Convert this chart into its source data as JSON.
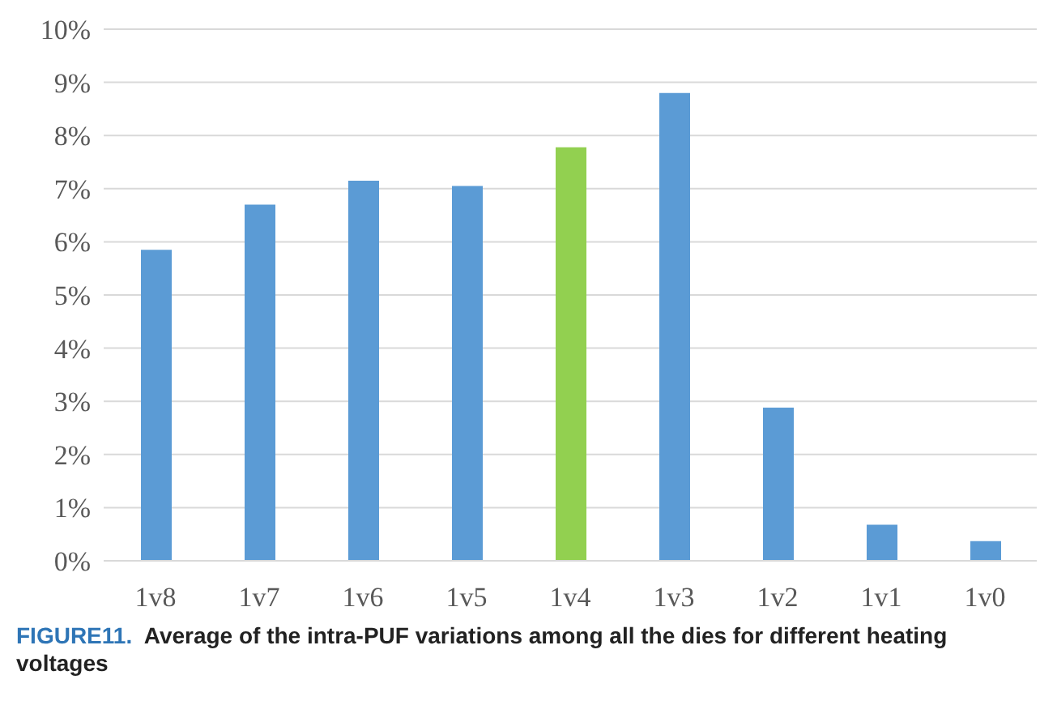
{
  "chart_data": {
    "type": "bar",
    "title": "FIGURE11.  Average of the intra-PUF variations among all the dies for different heating voltages",
    "categories": [
      "1v8",
      "1v7",
      "1v6",
      "1v5",
      "1v4",
      "1v3",
      "1v2",
      "1v1",
      "1v0"
    ],
    "values": [
      5.85,
      6.7,
      7.15,
      7.05,
      7.78,
      8.8,
      2.88,
      0.68,
      0.37
    ],
    "colors": [
      "#5b9bd5",
      "#5b9bd5",
      "#5b9bd5",
      "#5b9bd5",
      "#92d050",
      "#5b9bd5",
      "#5b9bd5",
      "#5b9bd5",
      "#5b9bd5"
    ],
    "ylim": [
      0,
      10
    ],
    "yticks": [
      {
        "value": 0,
        "label": "0%"
      },
      {
        "value": 1,
        "label": "1%"
      },
      {
        "value": 2,
        "label": "2%"
      },
      {
        "value": 3,
        "label": "3%"
      },
      {
        "value": 4,
        "label": "4%"
      },
      {
        "value": 5,
        "label": "5%"
      },
      {
        "value": 6,
        "label": "6%"
      },
      {
        "value": 7,
        "label": "7%"
      },
      {
        "value": 8,
        "label": "8%"
      },
      {
        "value": 9,
        "label": "9%"
      },
      {
        "value": 10,
        "label": "10%"
      }
    ],
    "grid": "y"
  }
}
